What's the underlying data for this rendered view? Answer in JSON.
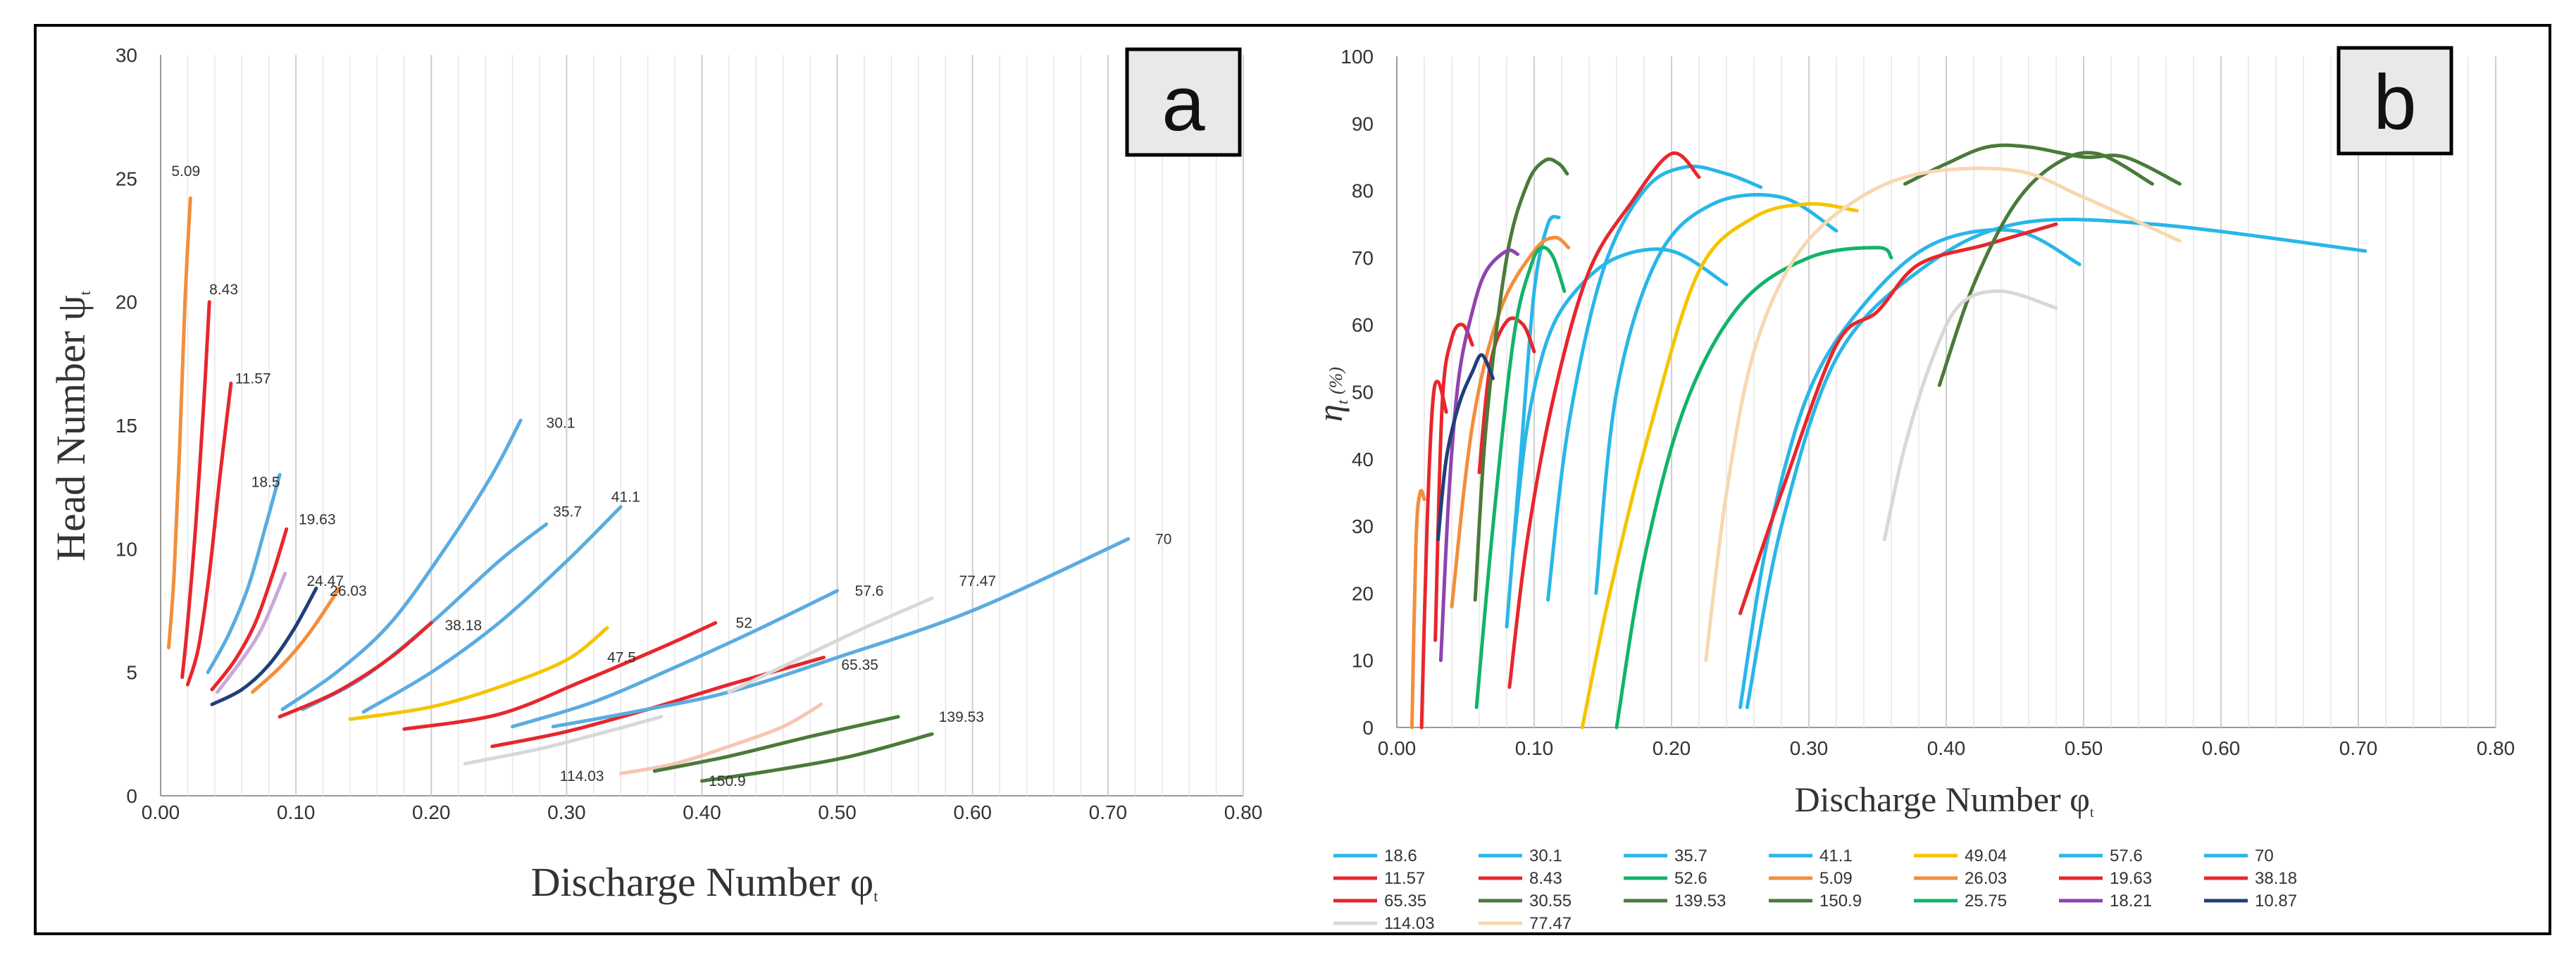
{
  "chart_data": [
    {
      "panel": "a",
      "type": "line",
      "xlabel": "Discharge Number φ",
      "xlabel_sub": "t",
      "ylabel": "Head Number ψ",
      "ylabel_sub": "t",
      "xlim": [
        0,
        0.8
      ],
      "ylim": [
        0,
        30
      ],
      "xticks": [
        "0.00",
        "0.10",
        "0.20",
        "0.30",
        "0.40",
        "0.50",
        "0.60",
        "0.70",
        "0.80"
      ],
      "yticks": [
        "0",
        "5",
        "10",
        "15",
        "20",
        "25",
        "30"
      ],
      "grid": "vertical",
      "series": [
        {
          "label": "5.09",
          "color": "#f28e3c",
          "x": [
            0.006,
            0.01,
            0.014,
            0.018,
            0.022
          ],
          "y": [
            6,
            9,
            14,
            20,
            24.2
          ],
          "label_at": [
            0.008,
            25.3
          ]
        },
        {
          "label": "8.43",
          "color": "#e8262c",
          "x": [
            0.016,
            0.02,
            0.026,
            0.032,
            0.036
          ],
          "y": [
            4.8,
            7,
            11,
            16,
            20
          ],
          "label_at": [
            0.036,
            20.5
          ]
        },
        {
          "label": "11.57",
          "color": "#e8262c",
          "x": [
            0.02,
            0.028,
            0.036,
            0.044,
            0.052
          ],
          "y": [
            4.5,
            6,
            9,
            13,
            16.7
          ],
          "label_at": [
            0.055,
            16.9
          ]
        },
        {
          "label": "18.5",
          "color": "#5aace0",
          "x": [
            0.035,
            0.05,
            0.065,
            0.078,
            0.088
          ],
          "y": [
            5,
            6.5,
            8.5,
            11,
            13
          ],
          "label_at": [
            0.067,
            12.7
          ]
        },
        {
          "label": "19.63",
          "color": "#e8262c",
          "x": [
            0.038,
            0.055,
            0.07,
            0.083,
            0.093
          ],
          "y": [
            4.3,
            5.5,
            7,
            9,
            10.8
          ],
          "label_at": [
            0.102,
            11.2
          ]
        },
        {
          "label": "24.47",
          "color": "#c9a8dc",
          "x": [
            0.042,
            0.06,
            0.075,
            0.092
          ],
          "y": [
            4.2,
            5.5,
            6.8,
            9
          ],
          "label_at": [
            0.108,
            8.7
          ]
        },
        {
          "label": "26.03",
          "color": "#f28e3c",
          "x": [
            0.068,
            0.09,
            0.11,
            0.132
          ],
          "y": [
            4.2,
            5.3,
            6.6,
            8.4
          ],
          "label_at": [
            0.125,
            8.3
          ]
        },
        {
          "label": "",
          "color": "#1f3f7a",
          "x": [
            0.038,
            0.06,
            0.08,
            0.098,
            0.115
          ],
          "y": [
            3.7,
            4.3,
            5.3,
            6.7,
            8.4
          ],
          "label_at": null
        },
        {
          "label": "30.1",
          "color": "#5aace0",
          "x": [
            0.09,
            0.13,
            0.17,
            0.21,
            0.245,
            0.266
          ],
          "y": [
            3.5,
            5,
            7,
            10,
            13,
            15.2
          ],
          "label_at": [
            0.285,
            15.1
          ]
        },
        {
          "label": "35.7",
          "color": "#5aace0",
          "x": [
            0.105,
            0.15,
            0.2,
            0.25,
            0.285
          ],
          "y": [
            3.5,
            4.8,
            7,
            9.5,
            11
          ],
          "label_at": [
            0.29,
            11.5
          ]
        },
        {
          "label": "38.18",
          "color": "#e8262c",
          "x": [
            0.088,
            0.13,
            0.17,
            0.2
          ],
          "y": [
            3.2,
            4.2,
            5.6,
            7
          ],
          "label_at": [
            0.21,
            6.9
          ]
        },
        {
          "label": "41.1",
          "color": "#5aace0",
          "x": [
            0.15,
            0.2,
            0.25,
            0.3,
            0.34
          ],
          "y": [
            3.4,
            5,
            7,
            9.5,
            11.7
          ],
          "label_at": [
            0.333,
            12.1
          ]
        },
        {
          "label": "47.5",
          "color": "#f5c400",
          "x": [
            0.14,
            0.2,
            0.25,
            0.3,
            0.33
          ],
          "y": [
            3.1,
            3.6,
            4.4,
            5.5,
            6.8
          ],
          "label_at": [
            0.33,
            5.6
          ]
        },
        {
          "label": "52",
          "color": "#e8262c",
          "x": [
            0.18,
            0.25,
            0.31,
            0.37,
            0.41
          ],
          "y": [
            2.7,
            3.3,
            4.6,
            6,
            7
          ],
          "label_at": [
            0.425,
            7
          ]
        },
        {
          "label": "57.6",
          "color": "#5aace0",
          "x": [
            0.26,
            0.32,
            0.38,
            0.44,
            0.5
          ],
          "y": [
            2.8,
            3.8,
            5.2,
            6.7,
            8.3
          ],
          "label_at": [
            0.513,
            8.3
          ]
        },
        {
          "label": "65.35",
          "color": "#e8262c",
          "x": [
            0.245,
            0.3,
            0.36,
            0.42,
            0.49
          ],
          "y": [
            2,
            2.6,
            3.5,
            4.5,
            5.6
          ],
          "label_at": [
            0.503,
            5.3
          ]
        },
        {
          "label": "70",
          "color": "#5aace0",
          "x": [
            0.29,
            0.35,
            0.42,
            0.5,
            0.6,
            0.715
          ],
          "y": [
            2.8,
            3.4,
            4.2,
            5.6,
            7.5,
            10.4
          ],
          "label_at": [
            0.735,
            10.4
          ]
        },
        {
          "label": "77.47",
          "color": "#d8d8d8",
          "x": [
            0.42,
            0.47,
            0.52,
            0.57
          ],
          "y": [
            4.2,
            5.5,
            6.8,
            8
          ],
          "label_at": [
            0.59,
            8.7
          ]
        },
        {
          "label": "114.03",
          "color": "#f8c4b4",
          "x": [
            0.34,
            0.38,
            0.42,
            0.46,
            0.488
          ],
          "y": [
            0.9,
            1.3,
            2,
            2.8,
            3.7
          ],
          "label_at": [
            0.295,
            0.8
          ]
        },
        {
          "label": "",
          "color": "#d8d8d8",
          "x": [
            0.225,
            0.28,
            0.33,
            0.37
          ],
          "y": [
            1.3,
            1.9,
            2.6,
            3.2
          ],
          "label_at": null
        },
        {
          "label": "139.53",
          "color": "#4a7a3a",
          "x": [
            0.365,
            0.42,
            0.48,
            0.545
          ],
          "y": [
            1,
            1.6,
            2.4,
            3.2
          ],
          "label_at": [
            0.575,
            3.2
          ]
        },
        {
          "label": "150.9",
          "color": "#4a7a3a",
          "x": [
            0.4,
            0.45,
            0.51,
            0.57
          ],
          "y": [
            0.6,
            1,
            1.6,
            2.5
          ],
          "label_at": [
            0.405,
            0.6
          ]
        }
      ]
    },
    {
      "panel": "b",
      "type": "line",
      "xlabel": "Discharge Number φ",
      "xlabel_sub": "t",
      "ylabel": "η",
      "ylabel_sub": "t",
      "ylabel_unit": "(%)",
      "xlim": [
        0,
        0.8
      ],
      "ylim": [
        0,
        100
      ],
      "xticks": [
        "0.00",
        "0.10",
        "0.20",
        "0.30",
        "0.40",
        "0.50",
        "0.60",
        "0.70",
        "0.80"
      ],
      "yticks": [
        "0",
        "10",
        "20",
        "30",
        "40",
        "50",
        "60",
        "70",
        "80",
        "90",
        "100"
      ],
      "grid": "vertical",
      "series": [
        {
          "label": "18.6",
          "color": "#29b6e8",
          "x": [
            0.085,
            0.095,
            0.11,
            0.13,
            0.16,
            0.2,
            0.24
          ],
          "y": [
            27,
            45,
            58,
            65,
            70,
            71,
            66
          ]
        },
        {
          "label": "30.1",
          "color": "#29b6e8",
          "x": [
            0.11,
            0.125,
            0.15,
            0.18,
            0.21,
            0.24,
            0.265
          ],
          "y": [
            19,
            45,
            68,
            80,
            83.5,
            82.5,
            80.5
          ]
        },
        {
          "label": "35.7",
          "color": "#29b6e8",
          "x": [
            0.145,
            0.16,
            0.19,
            0.23,
            0.28,
            0.32
          ],
          "y": [
            20,
            50,
            70,
            78,
            79,
            74
          ]
        },
        {
          "label": "41.1",
          "color": "#29b6e8",
          "x": [
            0.08,
            0.09,
            0.1,
            0.11,
            0.118
          ],
          "y": [
            15,
            40,
            65,
            75,
            76
          ]
        },
        {
          "label": "49.04",
          "color": "#f5c400",
          "x": [
            0.135,
            0.155,
            0.185,
            0.22,
            0.26,
            0.3,
            0.335
          ],
          "y": [
            0,
            20,
            45,
            68,
            76,
            78,
            77
          ]
        },
        {
          "label": "57.6",
          "color": "#29b6e8",
          "x": [
            0.25,
            0.27,
            0.3,
            0.34,
            0.39,
            0.45,
            0.497
          ],
          "y": [
            3,
            28,
            50,
            63,
            72,
            74,
            69
          ]
        },
        {
          "label": "70",
          "color": "#29b6e8",
          "x": [
            0.255,
            0.28,
            0.32,
            0.38,
            0.45,
            0.55,
            0.705
          ],
          "y": [
            3,
            30,
            55,
            68,
            75,
            75,
            71
          ]
        },
        {
          "label": "11.57",
          "color": "#e8262c",
          "x": [
            0.082,
            0.095,
            0.115,
            0.14,
            0.17,
            0.2,
            0.22
          ],
          "y": [
            6,
            28,
            50,
            68,
            78,
            85.5,
            82
          ]
        },
        {
          "label": "8.43",
          "color": "#e8262c",
          "x": [
            0.018,
            0.022,
            0.026,
            0.03,
            0.036
          ],
          "y": [
            0,
            30,
            48,
            51.5,
            47
          ]
        },
        {
          "label": "52.6",
          "color": "#13b368",
          "x": [
            0.16,
            0.18,
            0.21,
            0.25,
            0.3,
            0.35,
            0.36
          ],
          "y": [
            0,
            25,
            48,
            63,
            70,
            71.5,
            70
          ]
        },
        {
          "label": "5.09",
          "color": "#f28e3c",
          "x": [
            0.011,
            0.014,
            0.017,
            0.02
          ],
          "y": [
            0,
            28,
            35,
            34
          ]
        },
        {
          "label": "26.03",
          "color": "#f28e3c",
          "x": [
            0.04,
            0.055,
            0.075,
            0.1,
            0.115,
            0.125
          ],
          "y": [
            18,
            45,
            62,
            71,
            73,
            71.5
          ]
        },
        {
          "label": "19.63",
          "color": "#e8262c",
          "x": [
            0.028,
            0.033,
            0.04,
            0.048,
            0.055
          ],
          "y": [
            13,
            48,
            58,
            60,
            57
          ]
        },
        {
          "label": "38.18",
          "color": "#e8262c",
          "x": [
            0.06,
            0.068,
            0.08,
            0.092,
            0.1
          ],
          "y": [
            38,
            54,
            60.5,
            60,
            56
          ]
        },
        {
          "label": "65.35",
          "color": "#e8262c",
          "x": [
            0.25,
            0.28,
            0.32,
            0.35,
            0.38,
            0.43,
            0.48
          ],
          "y": [
            17,
            35,
            57,
            62,
            69,
            72,
            75
          ]
        },
        {
          "label": "30.55",
          "color": "#4a7a3a",
          "x": [
            0.057,
            0.065,
            0.08,
            0.095,
            0.108,
            0.118,
            0.124
          ],
          "y": [
            19,
            45,
            70,
            81,
            84.5,
            84,
            82.5
          ]
        },
        {
          "label": "139.53",
          "color": "#4a7a3a",
          "x": [
            0.37,
            0.4,
            0.43,
            0.46,
            0.5,
            0.53,
            0.57
          ],
          "y": [
            81,
            84,
            86.5,
            86.5,
            85,
            85,
            81
          ]
        },
        {
          "label": "150.9",
          "color": "#4a7a3a",
          "x": [
            0.395,
            0.42,
            0.45,
            0.48,
            0.51,
            0.55
          ],
          "y": [
            51,
            66,
            78,
            84,
            85.5,
            81
          ]
        },
        {
          "label": "25.75",
          "color": "#13b368",
          "x": [
            0.058,
            0.07,
            0.085,
            0.098,
            0.106,
            0.114,
            0.122
          ],
          "y": [
            3,
            30,
            58,
            69,
            71.5,
            70,
            65
          ]
        },
        {
          "label": "18.21",
          "color": "#8e44ad",
          "x": [
            0.032,
            0.038,
            0.045,
            0.055,
            0.065,
            0.08,
            0.088
          ],
          "y": [
            10,
            35,
            52,
            62,
            68,
            71,
            70.5
          ]
        },
        {
          "label": "10.87",
          "color": "#1f3f7a",
          "x": [
            0.03,
            0.036,
            0.045,
            0.055,
            0.062,
            0.07
          ],
          "y": [
            28,
            40,
            48,
            53,
            55.5,
            52
          ]
        },
        {
          "label": "114.03",
          "color": "#d8d8d8",
          "x": [
            0.355,
            0.37,
            0.39,
            0.41,
            0.44,
            0.48
          ],
          "y": [
            28,
            42,
            55,
            63,
            65,
            62.5
          ]
        },
        {
          "label": "77.47",
          "color": "#f8d7b0",
          "x": [
            0.225,
            0.24,
            0.26,
            0.29,
            0.33,
            0.38,
            0.45,
            0.5,
            0.57
          ],
          "y": [
            10,
            35,
            56,
            70,
            78,
            82.5,
            83,
            79,
            72.5
          ]
        }
      ]
    }
  ],
  "panel_a": {
    "letter": "a"
  },
  "panel_b": {
    "letter": "b"
  }
}
